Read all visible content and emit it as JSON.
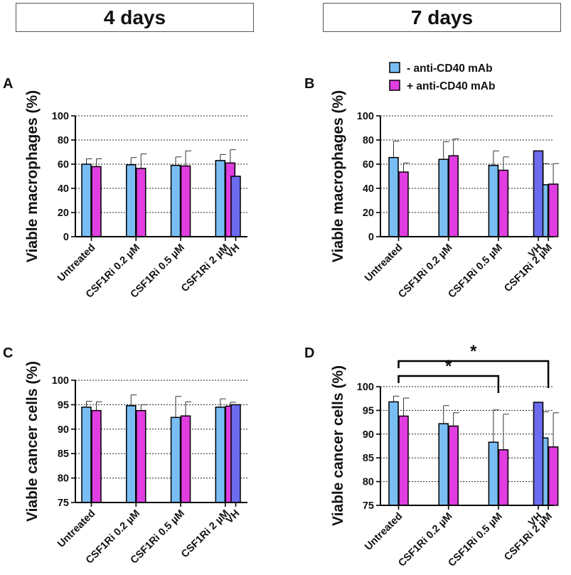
{
  "headers": {
    "left": "4 days",
    "right": "7 days"
  },
  "colors": {
    "minus": "#79bdf3",
    "plus": "#e13de1",
    "vh": "#6c6cf0"
  },
  "legend": {
    "minus": "- anti-CD40 mAb",
    "plus": "+ anti-CD40 mAb"
  },
  "chart_data": [
    {
      "panel": "A",
      "type": "bar",
      "title": "4 days",
      "ylabel": "Viable macrophages (%)",
      "ylim": [
        0,
        100
      ],
      "yticks": [
        0,
        20,
        40,
        60,
        80,
        100
      ],
      "grid": "horizontal dotted",
      "categories": [
        "Untreated",
        "CSF1Ri 0.2 µM",
        "CSF1Ri 0.5 µM",
        "CSF1Ri 2 µM",
        "VH"
      ],
      "series": [
        {
          "name": "- anti-CD40 mAb",
          "values": [
            60,
            59.5,
            59,
            63,
            null
          ],
          "errors": [
            4.5,
            6,
            7,
            5,
            null
          ]
        },
        {
          "name": "+ anti-CD40 mAb",
          "values": [
            58,
            56.5,
            58.5,
            61,
            null
          ],
          "errors": [
            6.5,
            12,
            12.5,
            11,
            null
          ]
        },
        {
          "name": "VH",
          "values": [
            null,
            null,
            null,
            null,
            50
          ],
          "errors": [
            null,
            null,
            null,
            null,
            0
          ]
        }
      ],
      "significance": []
    },
    {
      "panel": "B",
      "type": "bar",
      "title": "7 days",
      "ylabel": "Viable macrophages (%)",
      "ylim": [
        0,
        100
      ],
      "yticks": [
        0,
        20,
        40,
        60,
        80,
        100
      ],
      "grid": "horizontal dotted",
      "categories": [
        "Untreated",
        "CSF1Ri 0.2 µM",
        "CSF1Ri 0.5 µM",
        "CSF1Ri 2 µM",
        "VH"
      ],
      "series": [
        {
          "name": "- anti-CD40 mAb",
          "values": [
            65.5,
            64,
            59,
            43,
            null
          ],
          "errors": [
            13.5,
            14.5,
            12,
            17.5,
            null
          ]
        },
        {
          "name": "+ anti-CD40 mAb",
          "values": [
            53.5,
            67,
            55,
            43.5,
            null
          ],
          "errors": [
            7.5,
            14,
            11,
            17,
            null
          ]
        },
        {
          "name": "VH",
          "values": [
            null,
            null,
            null,
            null,
            71
          ],
          "errors": [
            null,
            null,
            null,
            null,
            0
          ]
        }
      ],
      "significance": []
    },
    {
      "panel": "C",
      "type": "bar",
      "title": "4 days",
      "ylabel": "Viable cancer cells (%)",
      "ylim": [
        75,
        100
      ],
      "yticks": [
        75,
        80,
        85,
        90,
        95,
        100
      ],
      "grid": "horizontal dotted",
      "categories": [
        "Untreated",
        "CSF1Ri 0.2 µM",
        "CSF1Ri 0.5 µM",
        "CSF1Ri 2 µM",
        "VH"
      ],
      "series": [
        {
          "name": "- anti-CD40 mAb",
          "values": [
            94.5,
            94.8,
            92.4,
            94.5,
            null
          ],
          "errors": [
            1.2,
            2.2,
            4.3,
            1.7,
            null
          ]
        },
        {
          "name": "+ anti-CD40 mAb",
          "values": [
            93.8,
            93.8,
            92.7,
            94.7,
            null
          ],
          "errors": [
            1.8,
            1.2,
            2.9,
            0.8,
            null
          ]
        },
        {
          "name": "VH",
          "values": [
            null,
            null,
            null,
            null,
            95
          ],
          "errors": [
            null,
            null,
            null,
            null,
            0
          ]
        }
      ],
      "significance": []
    },
    {
      "panel": "D",
      "type": "bar",
      "title": "7 days",
      "ylabel": "Viable cancer cells (%)",
      "ylim": [
        75,
        100
      ],
      "yticks": [
        75,
        80,
        85,
        90,
        95,
        100
      ],
      "grid": "horizontal dotted",
      "categories": [
        "Untreated",
        "CSF1Ri 0.2 µM",
        "CSF1Ri 0.5 µM",
        "CSF1Ri 2 µM",
        "VH"
      ],
      "series": [
        {
          "name": "- anti-CD40 mAb",
          "values": [
            96.8,
            92.2,
            88.3,
            89.2,
            null
          ],
          "errors": [
            1.2,
            3.8,
            6.8,
            5.5,
            null
          ]
        },
        {
          "name": "+ anti-CD40 mAb",
          "values": [
            93.8,
            91.7,
            86.7,
            87.3,
            null
          ],
          "errors": [
            3.8,
            2.8,
            7.5,
            7.2,
            null
          ]
        },
        {
          "name": "VH",
          "values": [
            null,
            null,
            null,
            null,
            96.7
          ],
          "errors": [
            null,
            null,
            null,
            null,
            0
          ]
        }
      ],
      "significance": [
        {
          "from": "Untreated",
          "to": "CSF1Ri 0.5 µM",
          "label": "*"
        },
        {
          "from": "Untreated",
          "to": "CSF1Ri 2 µM",
          "label": "*"
        }
      ]
    }
  ]
}
